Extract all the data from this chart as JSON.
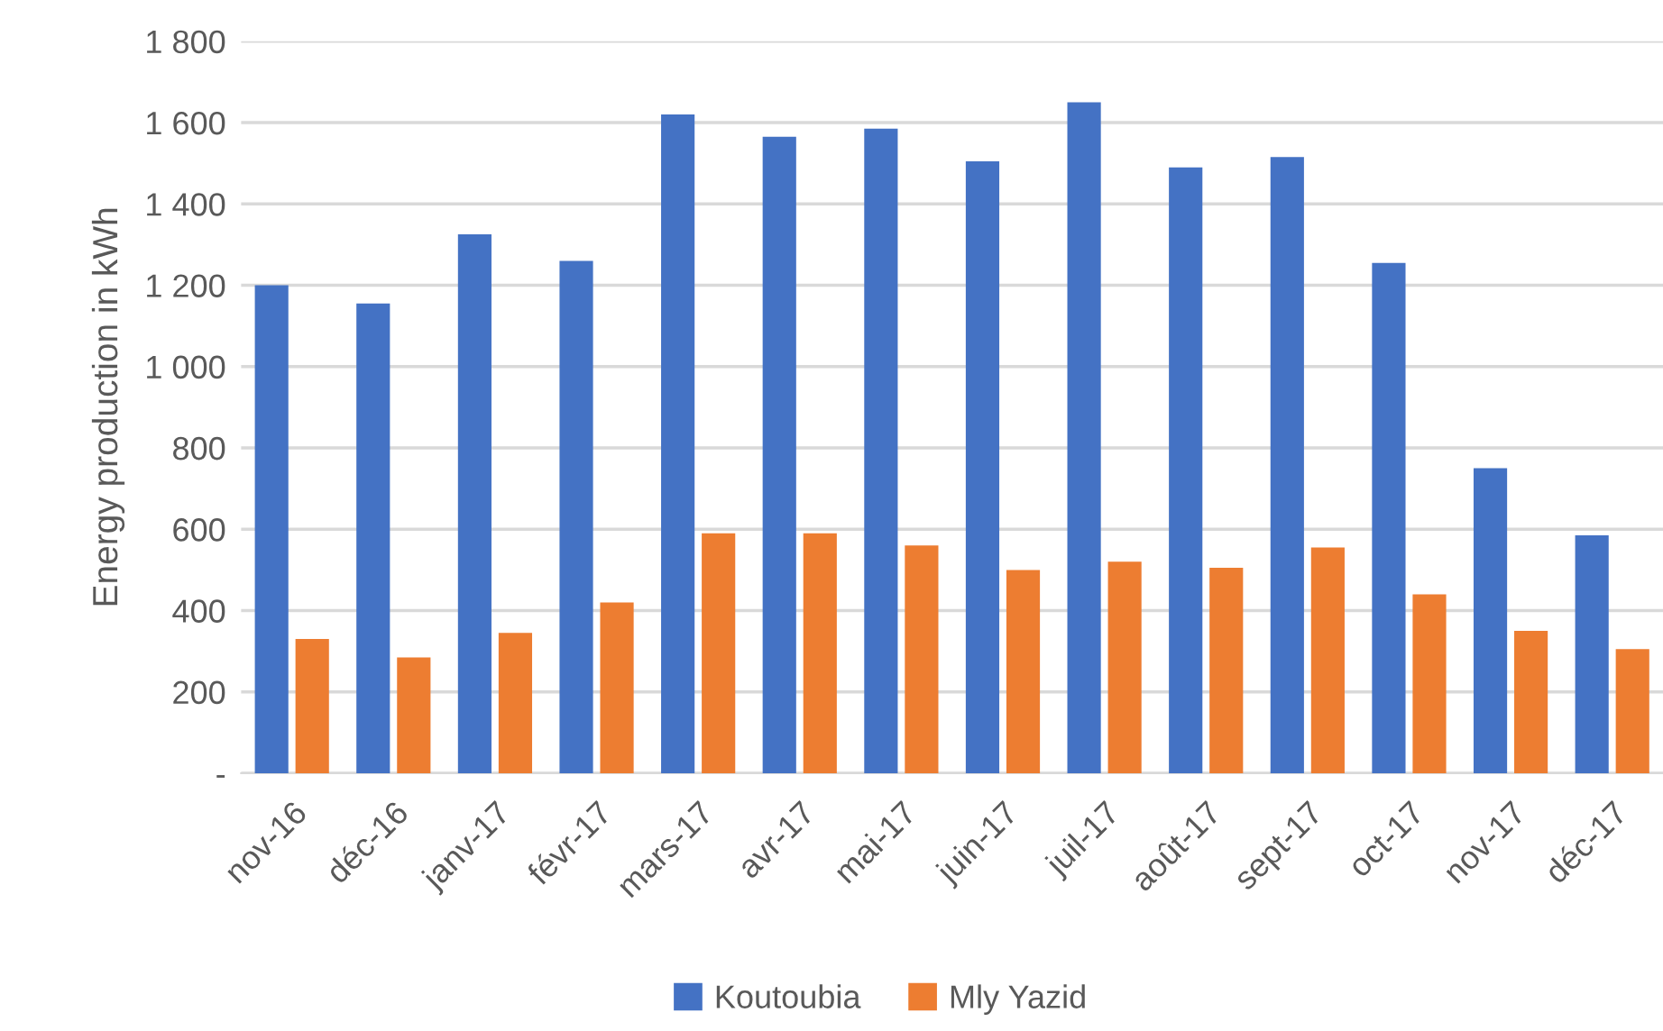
{
  "chart_data": {
    "type": "bar",
    "ylabel": "Energy production in kWh",
    "categories": [
      "nov-16",
      "déc-16",
      "janv-17",
      "févr-17",
      "mars-17",
      "avr-17",
      "mai-17",
      "juin-17",
      "juil-17",
      "août-17",
      "sept-17",
      "oct-17",
      "nov-17",
      "déc-17"
    ],
    "series": [
      {
        "name": "Koutoubia",
        "color": "#4472c4",
        "values": [
          1200,
          1155,
          1325,
          1260,
          1620,
          1565,
          1585,
          1505,
          1650,
          1490,
          1515,
          1255,
          750,
          585
        ]
      },
      {
        "name": "Mly Yazid",
        "color": "#ed7d31",
        "values": [
          330,
          285,
          345,
          420,
          590,
          590,
          560,
          500,
          520,
          505,
          555,
          440,
          350,
          305
        ]
      }
    ],
    "ylim": [
      0,
      1800
    ],
    "yticks": [
      {
        "value": 0,
        "label": "-"
      },
      {
        "value": 200,
        "label": "200"
      },
      {
        "value": 400,
        "label": "400"
      },
      {
        "value": 600,
        "label": "600"
      },
      {
        "value": 800,
        "label": "800"
      },
      {
        "value": 1000,
        "label": "1 000"
      },
      {
        "value": 1200,
        "label": "1 200"
      },
      {
        "value": 1400,
        "label": "1 400"
      },
      {
        "value": 1600,
        "label": "1 600"
      },
      {
        "value": 1800,
        "label": "1 800"
      }
    ],
    "grid": "y",
    "legend": "bottom"
  }
}
